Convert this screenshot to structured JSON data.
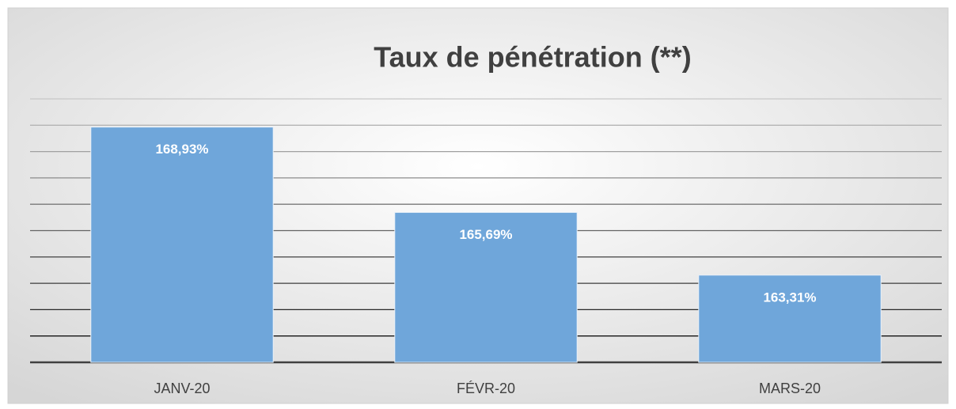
{
  "chart_data": {
    "type": "bar",
    "title": "Taux de pénétration (**)",
    "categories": [
      "JANV-20",
      "FÉVR-20",
      "MARS-20"
    ],
    "values": [
      168.93,
      165.69,
      163.31
    ],
    "value_labels": [
      "168,93%",
      "165,69%",
      "163,31%"
    ],
    "color": "#6fa6da",
    "ylim": [
      160,
      170
    ],
    "yticks": [
      160,
      161,
      162,
      163,
      164,
      165,
      166,
      167,
      168,
      169,
      170
    ],
    "grid": true
  }
}
